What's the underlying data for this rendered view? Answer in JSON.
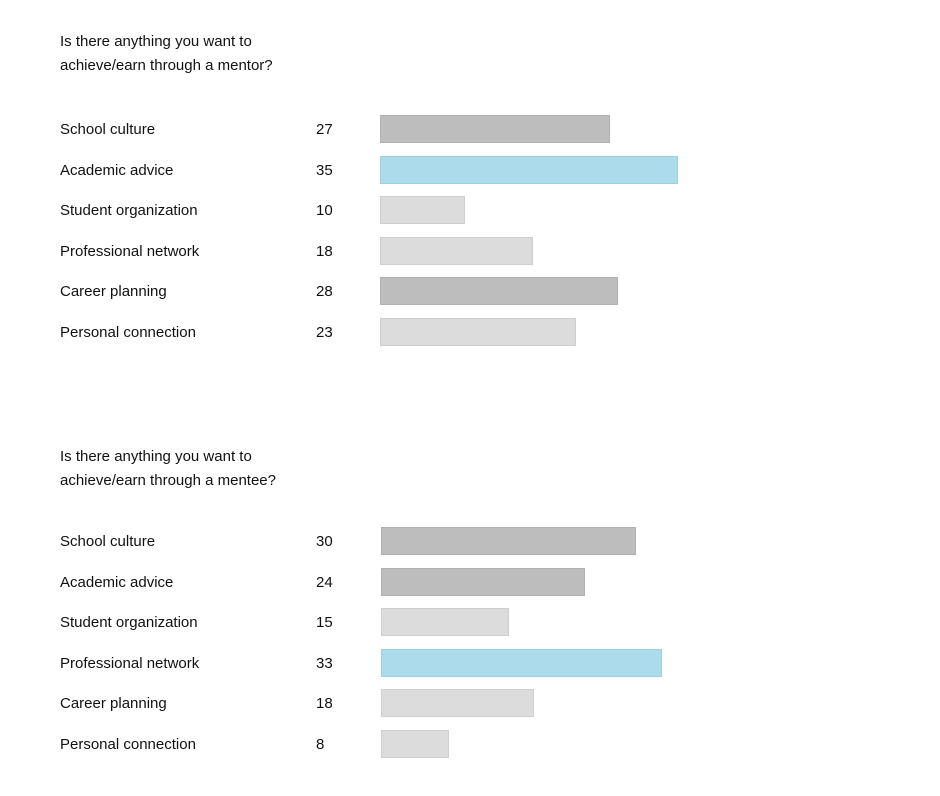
{
  "colors": {
    "dark": "#bdbdbd",
    "light": "#dcdcdc",
    "highlight": "#acdcec"
  },
  "chart_data": [
    {
      "type": "bar",
      "orientation": "horizontal",
      "title": "Is there anything you want to\nachieve/earn through a mentor?",
      "categories": [
        "School culture",
        "Academic advice",
        "Student organization",
        "Professional network",
        "Career planning",
        "Personal connection"
      ],
      "values": [
        27,
        35,
        10,
        18,
        28,
        23
      ],
      "bar_colors": [
        "dark",
        "highlight",
        "light",
        "light",
        "dark",
        "light"
      ],
      "grid": false
    },
    {
      "type": "bar",
      "orientation": "horizontal",
      "title": "Is there anything you want to\nachieve/earn through a mentee?",
      "categories": [
        "School culture",
        "Academic advice",
        "Student organization",
        "Professional network",
        "Career planning",
        "Personal connection"
      ],
      "values": [
        30,
        24,
        15,
        33,
        18,
        8
      ],
      "bar_colors": [
        "dark",
        "dark",
        "light",
        "highlight",
        "light",
        "light"
      ],
      "grid": false
    }
  ]
}
